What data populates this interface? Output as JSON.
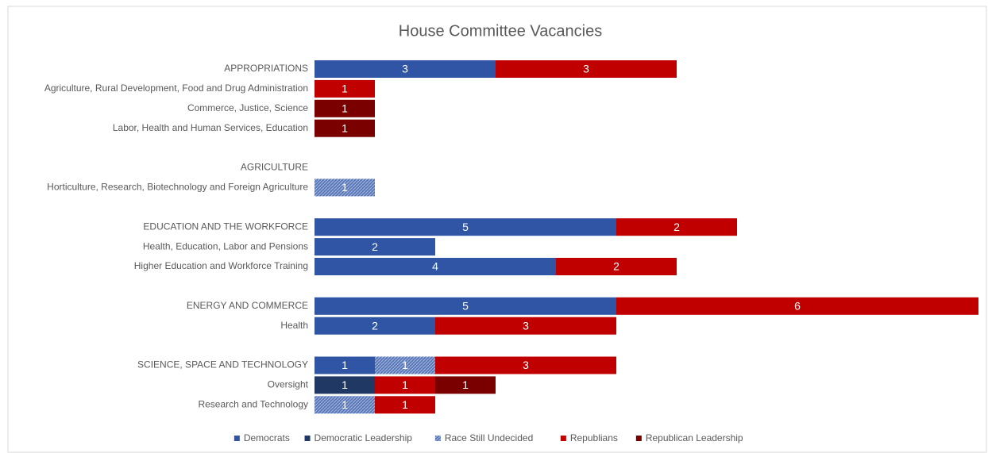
{
  "chart_data": {
    "type": "stacked_barh",
    "title": "House Committee Vacancies",
    "categories": [
      "APPROPRIATIONS",
      "Agriculture, Rural Development, Food and Drug Administration",
      "Commerce, Justice, Science",
      "Labor, Health and Human Services, Education",
      null,
      "AGRICULTURE",
      "Horticulture, Research, Biotechnology and Foreign Agriculture",
      null,
      "EDUCATION AND THE WORKFORCE",
      "Health, Education, Labor and Pensions",
      "Higher Education and Workforce Training",
      null,
      "ENERGY AND COMMERCE",
      "Health",
      null,
      "SCIENCE, SPACE AND TECHNOLOGY",
      "Oversight",
      "Research and Technology"
    ],
    "series": [
      {
        "name": "Democrats",
        "color": "#2f55a4",
        "values": [
          3,
          null,
          null,
          null,
          null,
          null,
          null,
          null,
          5,
          2,
          4,
          null,
          5,
          2,
          null,
          1,
          null,
          null
        ]
      },
      {
        "name": "Democratic Leadership",
        "color": "#1f3864",
        "values": [
          null,
          null,
          null,
          null,
          null,
          null,
          null,
          null,
          null,
          null,
          null,
          null,
          null,
          null,
          null,
          null,
          1,
          null
        ]
      },
      {
        "name": "Race Still Undecided",
        "color": "#5a78b8",
        "values": [
          null,
          null,
          null,
          null,
          null,
          null,
          1,
          null,
          null,
          null,
          null,
          null,
          null,
          null,
          null,
          1,
          null,
          1
        ]
      },
      {
        "name": "Republians",
        "color": "#c00000",
        "values": [
          3,
          1,
          null,
          null,
          null,
          null,
          null,
          null,
          2,
          null,
          2,
          null,
          6,
          3,
          null,
          3,
          1,
          1
        ]
      },
      {
        "name": "Republican Leadership",
        "color": "#7a0000",
        "values": [
          null,
          null,
          1,
          1,
          null,
          null,
          null,
          null,
          null,
          null,
          null,
          null,
          null,
          null,
          null,
          null,
          1,
          null
        ]
      }
    ],
    "xlim": [
      0,
      11
    ],
    "legend": "bottom"
  }
}
